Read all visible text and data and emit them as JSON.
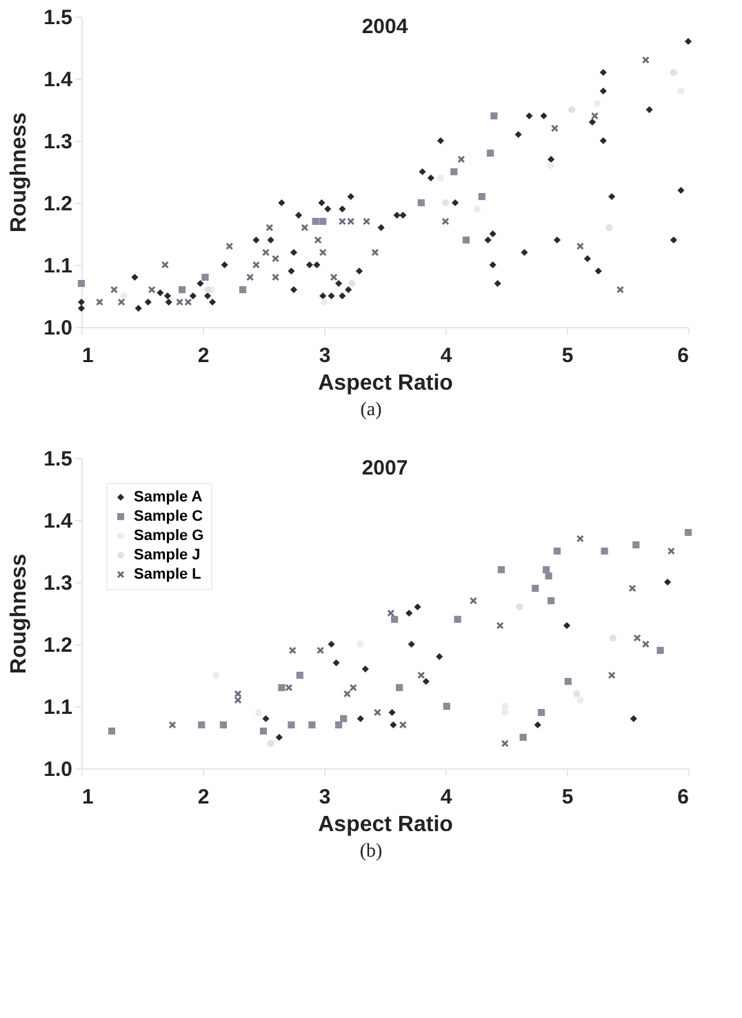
{
  "chart_data": [
    {
      "type": "scatter",
      "title": "2004",
      "xlabel": "Aspect Ratio",
      "ylabel": "Roughness",
      "annotations": [
        "(a)"
      ],
      "xlim": [
        1,
        6
      ],
      "xticks": [
        1,
        2,
        3,
        4,
        5,
        6
      ],
      "ylim": [
        1,
        1.5
      ],
      "yticks": [
        {
          "value": 1,
          "label": "1.0"
        },
        1.1,
        1.2,
        1.3,
        1.4,
        1.5
      ],
      "legend": false,
      "series": [
        {
          "color": "#2a2a2a",
          "marker": "diamond",
          "x": [
            6.0,
            5.3,
            5.3,
            5.68,
            5.3,
            5.37,
            5.94,
            5.21,
            4.81,
            4.69,
            4.6,
            4.87,
            3.96,
            3.81,
            3.88,
            4.08,
            3.22,
            2.65,
            2.98,
            2.79,
            3.03,
            3.15,
            3.6,
            3.65,
            3.47,
            4.39,
            4.35,
            4.39,
            4.43,
            4.65,
            4.92,
            5.17,
            5.26,
            5.88,
            2.44,
            2.56,
            2.75,
            2.73,
            2.75,
            2.88,
            2.94,
            2.99,
            3.06,
            3.15,
            3.12,
            3.2,
            3.29,
            2.18,
            2.08,
            2.04,
            1.98,
            1.92,
            1.71,
            1.65,
            1.72,
            1.55,
            1.47,
            1.44,
            1.0,
            1.0
          ],
          "values": [
            1.46,
            1.41,
            1.38,
            1.35,
            1.3,
            1.21,
            1.22,
            1.33,
            1.34,
            1.34,
            1.31,
            1.27,
            1.3,
            1.25,
            1.24,
            1.2,
            1.21,
            1.2,
            1.2,
            1.18,
            1.19,
            1.19,
            1.18,
            1.18,
            1.16,
            1.15,
            1.14,
            1.1,
            1.07,
            1.12,
            1.14,
            1.11,
            1.09,
            1.14,
            1.14,
            1.14,
            1.12,
            1.09,
            1.06,
            1.1,
            1.1,
            1.05,
            1.05,
            1.05,
            1.07,
            1.06,
            1.09,
            1.1,
            1.04,
            1.05,
            1.07,
            1.05,
            1.05,
            1.055,
            1.04,
            1.04,
            1.03,
            1.08,
            1.04,
            1.03
          ]
        },
        {
          "color": "#8a8a9a",
          "marker": "square",
          "x": [
            4.4,
            4.37,
            4.07,
            4.3,
            3.8,
            2.99,
            2.93,
            4.17,
            2.33,
            2.02,
            1.0,
            1.83
          ],
          "values": [
            1.34,
            1.28,
            1.25,
            1.21,
            1.2,
            1.17,
            1.17,
            1.14,
            1.06,
            1.08,
            1.07,
            1.06
          ]
        },
        {
          "color": "#ececec",
          "marker": "circle",
          "x": [
            5.25,
            5.94,
            3.96,
            4.26,
            4.87,
            2.07,
            1.35,
            3.0
          ],
          "values": [
            1.36,
            1.38,
            1.24,
            1.19,
            1.26,
            1.06,
            1.05,
            1.04
          ]
        },
        {
          "color": "#e2e2e2",
          "marker": "circle",
          "x": [
            5.04,
            5.35,
            4.0,
            3.23,
            2.04,
            5.88
          ],
          "values": [
            1.35,
            1.16,
            1.2,
            1.07,
            1.06,
            1.41
          ]
        },
        {
          "color": "#6a6a7a",
          "marker": "cross",
          "x": [
            5.65,
            5.23,
            4.9,
            4.13,
            4.0,
            3.35,
            3.15,
            3.22,
            2.84,
            2.55,
            5.11,
            5.44,
            3.42,
            2.99,
            2.95,
            3.08,
            2.6,
            2.6,
            2.52,
            2.44,
            2.22,
            1.69,
            1.15,
            1.81,
            1.88,
            1.27,
            1.33,
            1.58,
            2.39
          ],
          "values": [
            1.43,
            1.34,
            1.32,
            1.27,
            1.17,
            1.17,
            1.17,
            1.17,
            1.16,
            1.16,
            1.13,
            1.06,
            1.12,
            1.12,
            1.14,
            1.08,
            1.08,
            1.11,
            1.12,
            1.1,
            1.13,
            1.1,
            1.04,
            1.04,
            1.04,
            1.06,
            1.04,
            1.06,
            1.08
          ]
        }
      ]
    },
    {
      "type": "scatter",
      "title": "2007",
      "xlabel": "Aspect Ratio",
      "ylabel": "Roughness",
      "annotations": [
        "(b)"
      ],
      "xlim": [
        1,
        6
      ],
      "xticks": [
        1,
        2,
        3,
        4,
        5,
        6
      ],
      "ylim": [
        1,
        1.5
      ],
      "yticks": [
        {
          "value": 1,
          "label": "1.0"
        },
        1.1,
        1.2,
        1.3,
        1.4,
        1.5
      ],
      "legend": "top left",
      "series": [
        {
          "name": "Sample A",
          "color": "#2a2a2a",
          "marker": "diamond",
          "x": [
            5.83,
            5.0,
            3.77,
            3.7,
            3.06,
            3.72,
            3.95,
            3.1,
            3.34,
            3.84,
            3.56,
            3.3,
            5.55,
            2.52,
            3.57,
            4.76,
            2.63
          ],
          "values": [
            1.3,
            1.23,
            1.26,
            1.25,
            1.2,
            1.2,
            1.18,
            1.17,
            1.16,
            1.14,
            1.09,
            1.08,
            1.08,
            1.08,
            1.07,
            1.07,
            1.05
          ]
        },
        {
          "name": "Sample C",
          "color": "#8a8a9a",
          "marker": "square",
          "x": [
            6.0,
            5.57,
            5.31,
            4.92,
            4.83,
            4.85,
            4.46,
            4.74,
            4.87,
            4.1,
            3.58,
            5.77,
            5.01,
            2.8,
            3.62,
            4.01,
            4.79,
            3.16,
            2.9,
            4.64,
            2.5,
            2.73,
            3.12,
            2.17,
            1.99,
            1.25,
            2.65
          ],
          "values": [
            1.38,
            1.36,
            1.35,
            1.35,
            1.32,
            1.31,
            1.32,
            1.29,
            1.27,
            1.24,
            1.24,
            1.19,
            1.14,
            1.15,
            1.13,
            1.1,
            1.09,
            1.08,
            1.07,
            1.05,
            1.06,
            1.07,
            1.07,
            1.07,
            1.07,
            1.06,
            1.13
          ]
        },
        {
          "name": "Sample G",
          "color": "#ececec",
          "marker": "circle",
          "x": [
            2.11,
            3.3,
            4.49,
            5.11,
            4.49,
            2.46
          ],
          "values": [
            1.15,
            1.2,
            1.09,
            1.11,
            1.1,
            1.09
          ]
        },
        {
          "name": "Sample J",
          "color": "#e2e2e2",
          "marker": "circle",
          "x": [
            5.38,
            4.61,
            2.56,
            5.08
          ],
          "values": [
            1.21,
            1.26,
            1.04,
            1.12
          ]
        },
        {
          "name": "Sample L",
          "color": "#6a6a7a",
          "marker": "cross",
          "x": [
            5.11,
            5.86,
            5.54,
            4.23,
            4.45,
            5.58,
            5.65,
            5.37,
            3.55,
            2.74,
            2.97,
            2.29,
            2.29,
            2.71,
            3.19,
            3.24,
            3.8,
            3.44,
            3.65,
            1.75,
            4.49
          ],
          "values": [
            1.37,
            1.35,
            1.29,
            1.27,
            1.23,
            1.21,
            1.2,
            1.15,
            1.25,
            1.19,
            1.19,
            1.12,
            1.11,
            1.13,
            1.12,
            1.13,
            1.15,
            1.09,
            1.07,
            1.07,
            1.04
          ]
        }
      ]
    }
  ]
}
